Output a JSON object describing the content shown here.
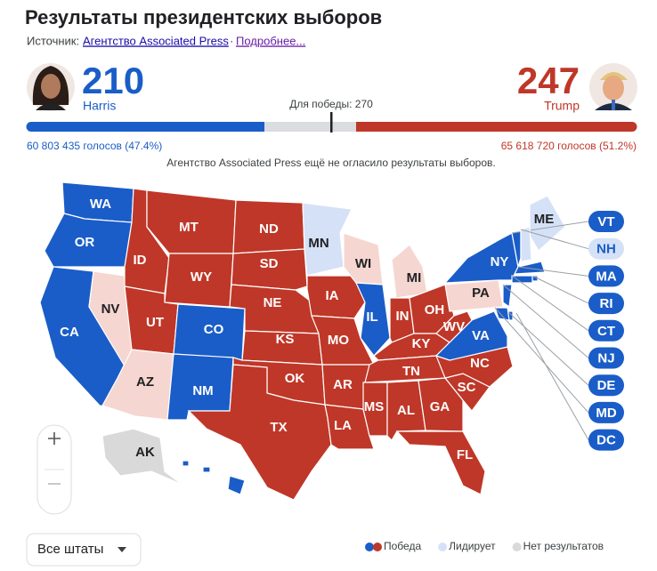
{
  "header": {
    "title": "Результаты президентских выборов",
    "source_label": "Источник:",
    "source_link": "Агентство Associated Press",
    "separator": "·",
    "more_link": "Подробнее..."
  },
  "candidates": [
    {
      "name": "Harris",
      "electoral_votes": 210,
      "popular_vote": "60 803 435 голосов (47.4%)",
      "color": "#1a5dc8"
    },
    {
      "name": "Trump",
      "electoral_votes": 247,
      "popular_vote": "65 618 720 голосов (51.2%)",
      "color": "#bf3728"
    }
  ],
  "win_threshold": "Для победы: 270",
  "notice": "Агентство Associated Press ещё не огласило результаты выборов.",
  "states": [
    {
      "label": "WA",
      "color": "#1a5dc8"
    },
    {
      "label": "OR",
      "color": "#1a5dc8"
    },
    {
      "label": "CA",
      "color": "#1a5dc8"
    },
    {
      "label": "NV",
      "color": "#f6d6d0"
    },
    {
      "label": "ID",
      "color": "#bf3728"
    },
    {
      "label": "MT",
      "color": "#bf3728"
    },
    {
      "label": "WY",
      "color": "#bf3728"
    },
    {
      "label": "UT",
      "color": "#bf3728"
    },
    {
      "label": "CO",
      "color": "#1a5dc8"
    },
    {
      "label": "AZ",
      "color": "#f6d6d0"
    },
    {
      "label": "NM",
      "color": "#1a5dc8"
    },
    {
      "label": "ND",
      "color": "#bf3728"
    },
    {
      "label": "SD",
      "color": "#bf3728"
    },
    {
      "label": "NE",
      "color": "#bf3728"
    },
    {
      "label": "KS",
      "color": "#bf3728"
    },
    {
      "label": "OK",
      "color": "#bf3728"
    },
    {
      "label": "TX",
      "color": "#bf3728"
    },
    {
      "label": "MN",
      "color": "#d5e1f6"
    },
    {
      "label": "IA",
      "color": "#bf3728"
    },
    {
      "label": "MO",
      "color": "#bf3728"
    },
    {
      "label": "AR",
      "color": "#bf3728"
    },
    {
      "label": "LA",
      "color": "#bf3728"
    },
    {
      "label": "WI",
      "color": "#f6d6d0"
    },
    {
      "label": "IL",
      "color": "#1a5dc8"
    },
    {
      "label": "MI",
      "color": "#f6d6d0"
    },
    {
      "label": "IN",
      "color": "#bf3728"
    },
    {
      "label": "OH",
      "color": "#bf3728"
    },
    {
      "label": "KY",
      "color": "#bf3728"
    },
    {
      "label": "TN",
      "color": "#bf3728"
    },
    {
      "label": "MS",
      "color": "#bf3728"
    },
    {
      "label": "AL",
      "color": "#bf3728"
    },
    {
      "label": "GA",
      "color": "#bf3728"
    },
    {
      "label": "FL",
      "color": "#bf3728"
    },
    {
      "label": "SC",
      "color": "#bf3728"
    },
    {
      "label": "NC",
      "color": "#bf3728"
    },
    {
      "label": "VA",
      "color": "#1a5dc8"
    },
    {
      "label": "WV",
      "color": "#bf3728"
    },
    {
      "label": "PA",
      "color": "#f6d6d0"
    },
    {
      "label": "NY",
      "color": "#1a5dc8"
    },
    {
      "label": "ME",
      "color": "#d5e1f6"
    },
    {
      "label": "AK",
      "color": "#d9d9d9"
    },
    {
      "label": "HI",
      "color": "#1a5dc8"
    },
    {
      "label": "VT",
      "color": "#1a5dc8"
    },
    {
      "label": "NH",
      "color": "#d5e1f6"
    },
    {
      "label": "MA",
      "color": "#1a5dc8"
    },
    {
      "label": "RI",
      "color": "#1a5dc8"
    },
    {
      "label": "CT",
      "color": "#1a5dc8"
    },
    {
      "label": "NJ",
      "color": "#1a5dc8"
    },
    {
      "label": "DE",
      "color": "#1a5dc8"
    },
    {
      "label": "MD",
      "color": "#1a5dc8"
    },
    {
      "label": "DC",
      "color": "#1a5dc8"
    }
  ],
  "legend": [
    {
      "label": "Победа",
      "colors": [
        "#1a5dc8",
        "#bf3728"
      ]
    },
    {
      "label": "Лидирует",
      "colors": [
        "#d5e1f6"
      ]
    },
    {
      "label": "Нет результатов",
      "colors": [
        "#d9d9d9"
      ]
    }
  ],
  "filter": "Все штаты"
}
